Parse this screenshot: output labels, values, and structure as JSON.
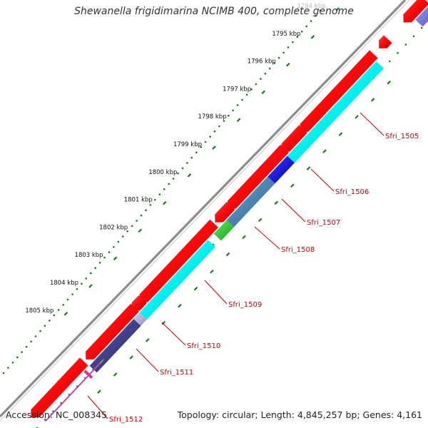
{
  "title": "Shewanella frigidimarina NCIMB 400, complete genome",
  "accession_text": "Accession: NC_008345",
  "topology_text": "Topology: circular; Length: 4,845,257 bp; Genes: 4,161",
  "kbp_labels": [
    {
      "text": "1794 kbp",
      "faint": true
    },
    {
      "text": "1795 kbp"
    },
    {
      "text": "1796 kbp"
    },
    {
      "text": "1797 kbp"
    },
    {
      "text": "1798 kbp"
    },
    {
      "text": "1799 kbp"
    },
    {
      "text": "1800 kbp"
    },
    {
      "text": "1801 kbp"
    },
    {
      "text": "1802 kbp"
    },
    {
      "text": "1803 kbp"
    },
    {
      "text": "1804 kbp"
    },
    {
      "text": "1805 kbp"
    }
  ],
  "gene_labels": [
    "Sfri_1505",
    "Sfri_1506",
    "Sfri_1507",
    "Sfri_1508",
    "Sfri_1509",
    "Sfri_1510",
    "Sfri_1511",
    "Sfri_1512"
  ],
  "colors": {
    "backbone": "#8c8c8c",
    "cds": "#e8000b",
    "cog_cyan": "#00f0f0",
    "cog_blue": "#0000e0",
    "cog_steel": "#4682b4",
    "cog_green": "#33cc33",
    "cog_navy": "#3c3c8a",
    "cog_lavender": "#b0b0dd",
    "cog_purple": "#7777dd",
    "cog_olive": "#6b8e23",
    "cog_pink": "#e0307a",
    "dots": "#1a7a1a",
    "gene_label": "#cc0000"
  }
}
